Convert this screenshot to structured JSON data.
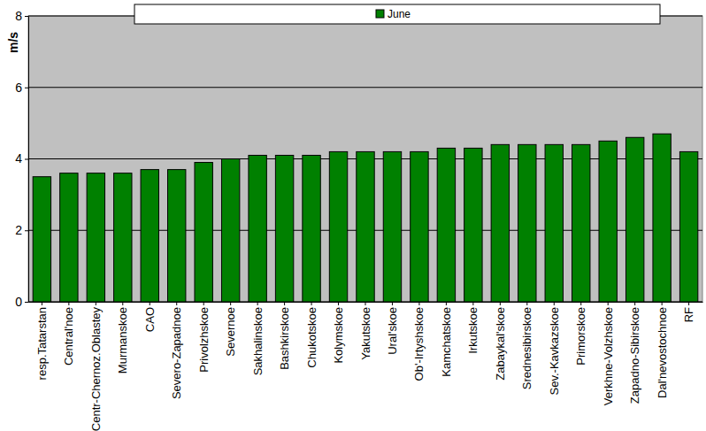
{
  "chart_data": {
    "type": "bar",
    "y_label": "m/s",
    "categories": [
      "resp.Tatarstan",
      "Central'noe",
      "Centr-Chernoz.Oblastey",
      "Murmanskoe",
      "CAO",
      "Severo-Zapadnoe",
      "Privolzhskoe",
      "Severnoe",
      "Sakhalinskoe",
      "Bashkirskoe",
      "Chukotskoe",
      "Kolymskoe",
      "Yakutskoe",
      "Ural'skoe",
      "Ob'-Irtyshskoe",
      "Kamchatskoe",
      "Irkutskoe",
      "Zabaykal'skoe",
      "Srednesibirskoe",
      "Sev.-Kavkazskoe",
      "Primorskoe",
      "Verkhne-Volzhskoe",
      "Zapadno-Sibirskoe",
      "Dal'nevostochnoe",
      "RF"
    ],
    "series": [
      {
        "name": "June",
        "color": "#008000",
        "values": [
          3.5,
          3.6,
          3.6,
          3.6,
          3.7,
          3.7,
          3.9,
          4.0,
          4.1,
          4.1,
          4.1,
          4.2,
          4.2,
          4.2,
          4.2,
          4.3,
          4.3,
          4.4,
          4.4,
          4.4,
          4.4,
          4.5,
          4.6,
          4.7,
          4.2
        ]
      }
    ],
    "ylim": [
      0,
      8
    ],
    "yticks": [
      0,
      2,
      4,
      6,
      8
    ],
    "grid": true,
    "legend": "top"
  }
}
